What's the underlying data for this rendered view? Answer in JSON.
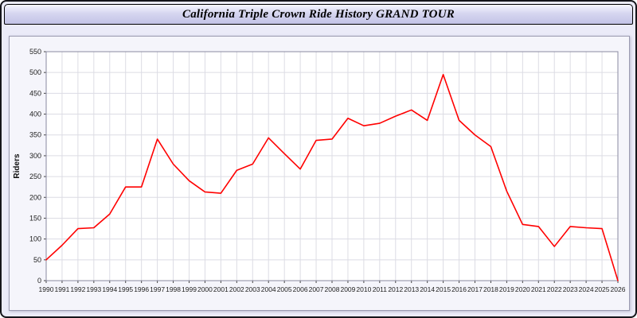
{
  "header": {
    "title": "California Triple Crown Ride History GRAND TOUR"
  },
  "colors": {
    "window_background": "#ebebf8",
    "title_bar_background": "#ccccee",
    "panel_background": "#f5f5fb",
    "plot_background": "#ffffff",
    "grid": "#dcdce4",
    "axis": "#444444",
    "line": "#ff0000",
    "text": "#222222"
  },
  "chart_data": {
    "type": "line",
    "title": "California Triple Crown Ride History GRAND TOUR",
    "xlabel": "",
    "ylabel": "Riders",
    "ylim": [
      0,
      550
    ],
    "ytick_step": 50,
    "grid": true,
    "legend": false,
    "x": [
      1990,
      1991,
      1992,
      1993,
      1994,
      1995,
      1996,
      1997,
      1998,
      1999,
      2000,
      2001,
      2002,
      2003,
      2004,
      2005,
      2006,
      2007,
      2008,
      2009,
      2010,
      2011,
      2012,
      2013,
      2014,
      2015,
      2016,
      2017,
      2018,
      2019,
      2020,
      2021,
      2022,
      2023,
      2024,
      2025,
      2026
    ],
    "series": [
      {
        "name": "Riders",
        "color": "#ff0000",
        "values": [
          50,
          85,
          125,
          127,
          160,
          225,
          225,
          340,
          280,
          240,
          213,
          210,
          265,
          280,
          343,
          305,
          268,
          337,
          340,
          390,
          372,
          378,
          395,
          410,
          385,
          495,
          385,
          350,
          322,
          215,
          135,
          130,
          82,
          130,
          127,
          125,
          0
        ]
      }
    ]
  }
}
